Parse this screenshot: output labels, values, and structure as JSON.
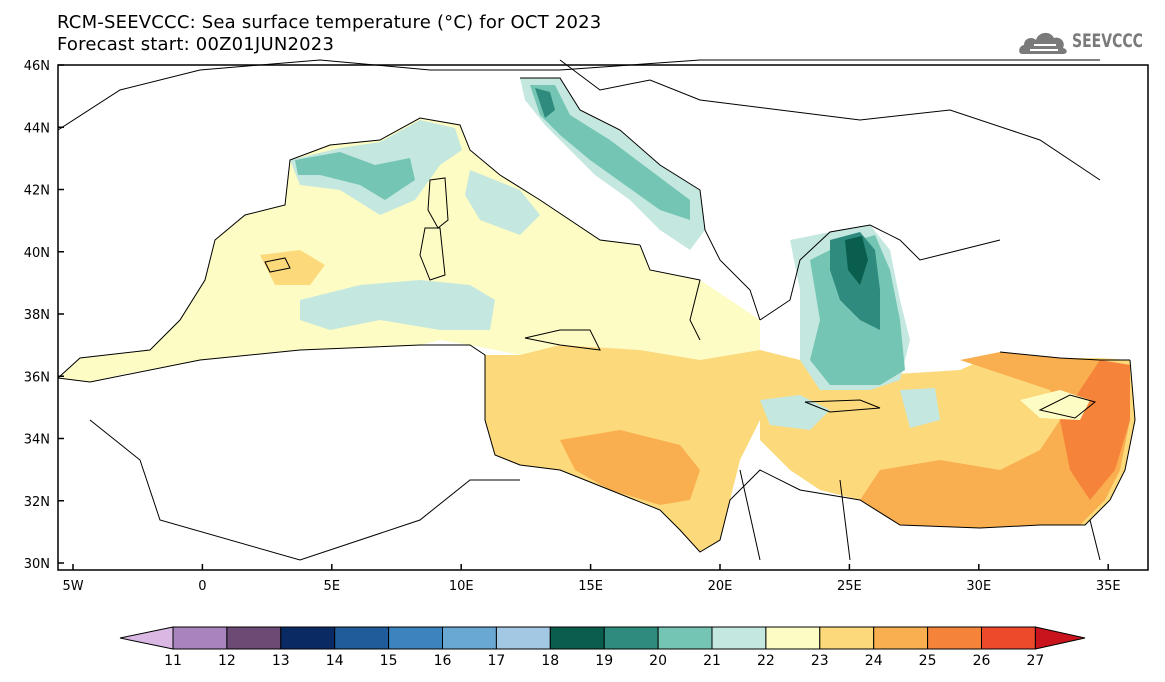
{
  "title_line1": "RCM-SEEVCCC: Sea surface temperature (°C) for OCT 2023",
  "title_line2": "Forecast start: 00Z01JUN2023",
  "logo_text": "SEEVCCC",
  "map": {
    "lat_labels": [
      "46N",
      "44N",
      "42N",
      "40N",
      "38N",
      "36N",
      "34N",
      "32N",
      "30N"
    ],
    "lon_labels": [
      "5W",
      "0",
      "5E",
      "10E",
      "15E",
      "20E",
      "25E",
      "30E",
      "35E"
    ]
  },
  "colorbar": {
    "labels": [
      "11",
      "12",
      "13",
      "14",
      "15",
      "16",
      "17",
      "18",
      "19",
      "20",
      "21",
      "22",
      "23",
      "24",
      "25",
      "26",
      "27"
    ],
    "colors": [
      "#d9b8e3",
      "#a784bd",
      "#6b4a73",
      "#0a2a64",
      "#1f5c99",
      "#3b84bd",
      "#6aa8d4",
      "#a3c8e3",
      "#0a5e4e",
      "#2e8b7d",
      "#74c5b4",
      "#c4e8df",
      "#fdfcc4",
      "#fcd97b",
      "#f9ae4f",
      "#f5843a",
      "#ec4a2b",
      "#c9141e"
    ]
  }
}
